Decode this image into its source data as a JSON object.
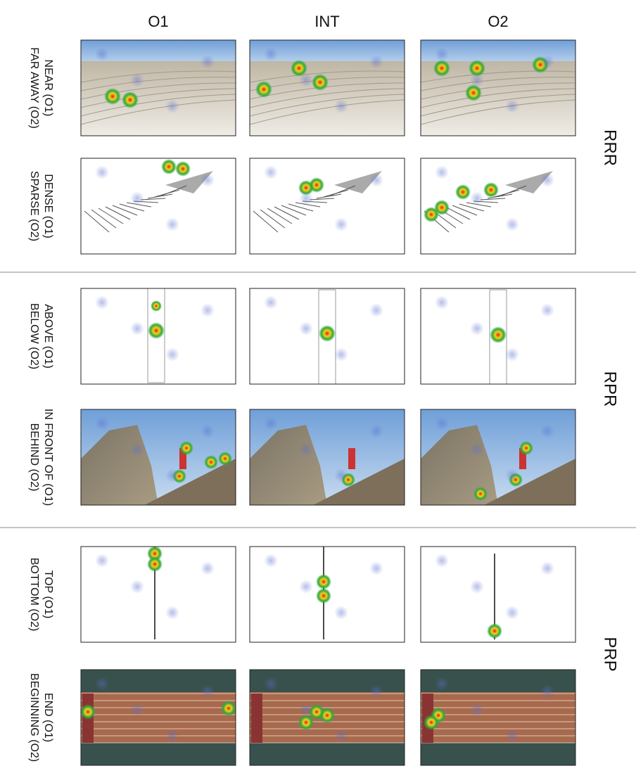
{
  "columns": [
    "O1",
    "INT",
    "O2"
  ],
  "groups": [
    {
      "label": "RRR",
      "rows": [
        {
          "lines": [
            "NEAR (O1)",
            "FAR AWAY (O2)"
          ]
        },
        {
          "lines": [
            "DENSE (O1)",
            "SPARSE (O2)"
          ]
        }
      ]
    },
    {
      "label": "RPR",
      "rows": [
        {
          "lines": [
            "ABOVE (O1)",
            "BELOW (O2)"
          ]
        },
        {
          "lines": [
            "IN FRONT OF (O1)",
            "BEHIND (O2)"
          ]
        }
      ]
    },
    {
      "label": "PRP",
      "rows": [
        {
          "lines": [
            "TOP (O1)",
            "BOTTOM (O2)"
          ]
        },
        {
          "lines": [
            "END (O1)",
            "BEGINNING (O2)"
          ]
        }
      ]
    }
  ]
}
